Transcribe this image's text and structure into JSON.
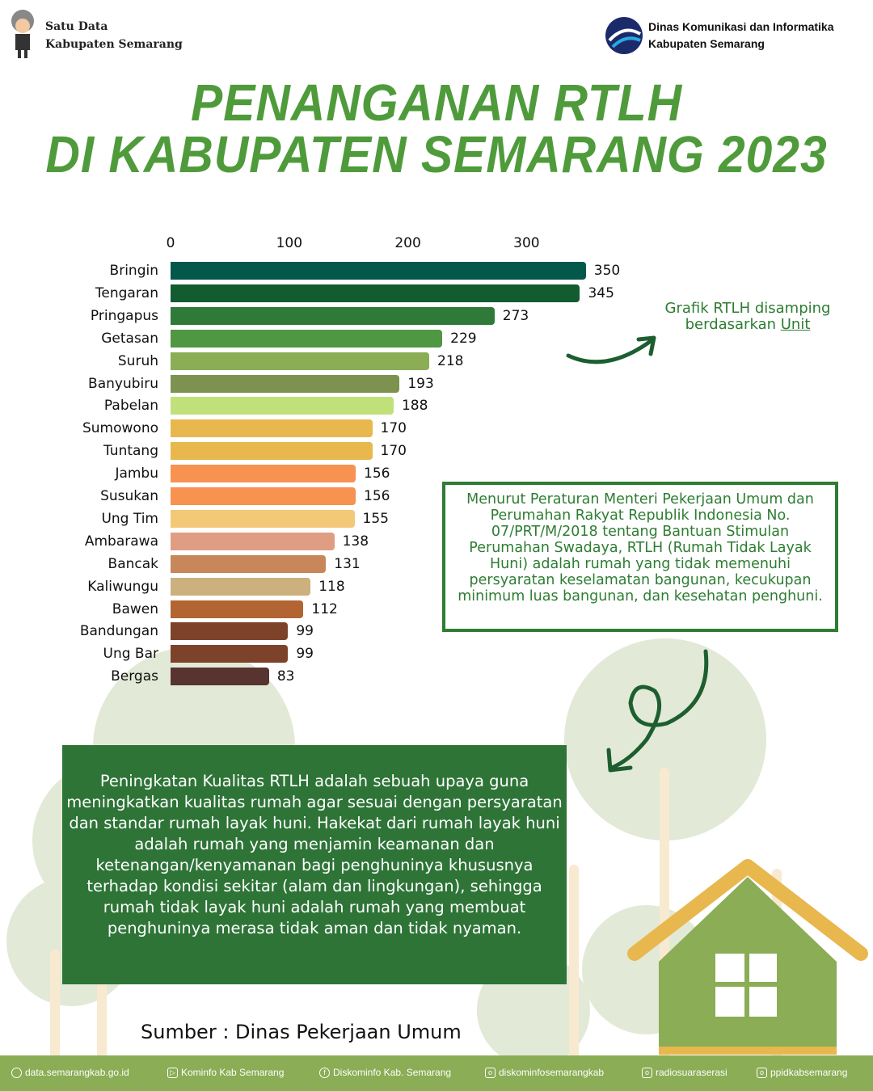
{
  "header": {
    "left_line1": "Satu Data",
    "left_line2": "Kabupaten Semarang",
    "right_line1": "Dinas Komunikasi dan Informatika",
    "right_line2": "Kabupaten Semarang"
  },
  "title": {
    "line1": "PENANGANAN RTLH",
    "line2": "DI KABUPATEN SEMARANG 2023"
  },
  "chart_data": {
    "type": "bar",
    "orientation": "horizontal",
    "xlim": [
      0,
      350
    ],
    "x_ticks": [
      "0",
      "100",
      "200",
      "300"
    ],
    "categories": [
      "Bringin",
      "Tengaran",
      "Pringapus",
      "Getasan",
      "Suruh",
      "Banyubiru",
      "Pabelan",
      "Sumowono",
      "Tuntang",
      "Jambu",
      "Susukan",
      "Ung Tim",
      "Ambarawa",
      "Bancak",
      "Kaliwungu",
      "Bawen",
      "Bandungan",
      "Ung Bar",
      "Bergas"
    ],
    "values": [
      350,
      345,
      273,
      229,
      218,
      193,
      188,
      170,
      170,
      156,
      156,
      155,
      138,
      131,
      118,
      112,
      99,
      99,
      83
    ],
    "colors": [
      "#04574b",
      "#125c2f",
      "#2f7a39",
      "#4f9742",
      "#8aad56",
      "#7e9250",
      "#c0e07a",
      "#e8b74e",
      "#e8b74e",
      "#f79250",
      "#f79250",
      "#f3c877",
      "#df9e84",
      "#c8875b",
      "#ccb07e",
      "#b26532",
      "#7d432a",
      "#7d432a",
      "#573430"
    ]
  },
  "note": {
    "text": "Grafik RTLH disamping berdasarkan ",
    "unit": "Unit"
  },
  "definition": "Menurut Peraturan Menteri Pekerjaan Umum dan Perumahan Rakyat Republik Indonesia No. 07/PRT/M/2018 tentang Bantuan Stimulan Perumahan Swadaya, RTLH (Rumah Tidak Layak Huni) adalah rumah yang tidak memenuhi persyaratan keselamatan bangunan, kecukupan minimum luas bangunan, dan kesehatan penghuni.",
  "description": "Peningkatan Kualitas RTLH adalah sebuah upaya guna meningkatkan kualitas rumah agar sesuai dengan persyaratan dan standar rumah layak huni. Hakekat dari rumah layak huni adalah rumah yang menjamin keamanan dan ketenangan/kenyamanan bagi penghuninya khususnya terhadap kondisi sekitar (alam dan lingkungan), sehingga rumah tidak layak huni adalah rumah yang membuat penghuninya merasa tidak aman dan tidak nyaman.",
  "source": "Sumber : Dinas Pekerjaan Umum",
  "footer": [
    {
      "icon": "globe-icon",
      "label": "data.semarangkab.go.id"
    },
    {
      "icon": "youtube-icon",
      "label": "Kominfo Kab Semarang"
    },
    {
      "icon": "facebook-icon",
      "label": "Diskominfo Kab. Semarang"
    },
    {
      "icon": "instagram-icon",
      "label": "diskominfosemarangkab"
    },
    {
      "icon": "instagram-icon",
      "label": "radiosuaraserasi"
    },
    {
      "icon": "instagram-icon",
      "label": "ppidkabsemarang"
    }
  ]
}
